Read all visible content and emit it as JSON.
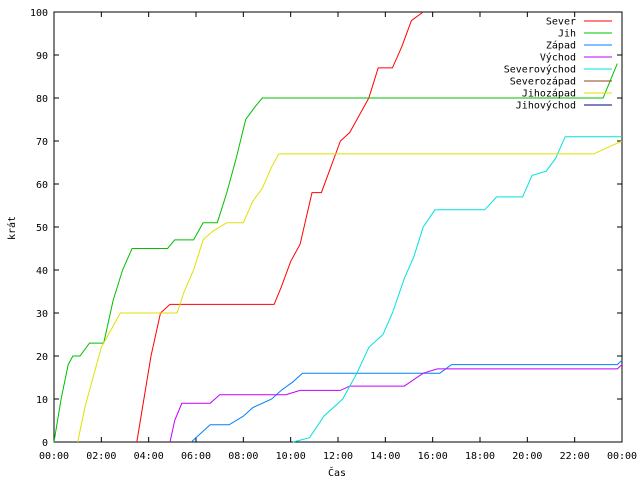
{
  "chart_data": {
    "type": "line",
    "xlabel": "Čas",
    "ylabel": "krát",
    "x_range_hours": [
      0,
      24
    ],
    "ylim": [
      0,
      100
    ],
    "grid": false,
    "legend_position": "top-right",
    "x_ticks": [
      "00:00",
      "02:00",
      "04:00",
      "06:00",
      "08:00",
      "10:00",
      "12:00",
      "14:00",
      "16:00",
      "18:00",
      "20:00",
      "22:00",
      "00:00"
    ],
    "y_ticks": [
      0,
      10,
      20,
      30,
      40,
      50,
      60,
      70,
      80,
      90,
      100
    ],
    "series": [
      {
        "name": "Sever",
        "color": "#ff0000",
        "points": [
          [
            3.5,
            0
          ],
          [
            3.8,
            10
          ],
          [
            4.1,
            20
          ],
          [
            4.5,
            30
          ],
          [
            4.9,
            32
          ],
          [
            9.3,
            32
          ],
          [
            9.6,
            36
          ],
          [
            10.0,
            42
          ],
          [
            10.4,
            46
          ],
          [
            10.9,
            58
          ],
          [
            11.3,
            58
          ],
          [
            11.7,
            64
          ],
          [
            12.1,
            70
          ],
          [
            12.5,
            72
          ],
          [
            12.9,
            76
          ],
          [
            13.3,
            80
          ],
          [
            13.7,
            87
          ],
          [
            14.3,
            87
          ],
          [
            14.7,
            92
          ],
          [
            15.1,
            98
          ],
          [
            15.6,
            100
          ]
        ]
      },
      {
        "name": "Jih",
        "color": "#00c000",
        "points": [
          [
            0,
            0
          ],
          [
            0.3,
            10
          ],
          [
            0.6,
            18
          ],
          [
            0.8,
            20
          ],
          [
            1.1,
            20
          ],
          [
            1.5,
            23
          ],
          [
            2.1,
            23
          ],
          [
            2.5,
            33
          ],
          [
            2.9,
            40
          ],
          [
            3.3,
            45
          ],
          [
            4.8,
            45
          ],
          [
            5.1,
            47
          ],
          [
            5.9,
            47
          ],
          [
            6.3,
            51
          ],
          [
            6.9,
            51
          ],
          [
            7.3,
            58
          ],
          [
            7.7,
            66
          ],
          [
            8.1,
            75
          ],
          [
            8.5,
            78
          ],
          [
            8.8,
            80
          ],
          [
            23.2,
            80
          ],
          [
            23.5,
            84
          ],
          [
            23.8,
            88
          ]
        ]
      },
      {
        "name": "Západ",
        "color": "#0080ff",
        "points": [
          [
            5.8,
            0
          ],
          [
            6.2,
            2
          ],
          [
            6.6,
            4
          ],
          [
            7.4,
            4
          ],
          [
            8.0,
            6
          ],
          [
            8.4,
            8
          ],
          [
            9.2,
            10
          ],
          [
            9.6,
            12
          ],
          [
            10.1,
            14
          ],
          [
            10.5,
            16
          ],
          [
            16.3,
            16
          ],
          [
            16.8,
            18
          ],
          [
            23.8,
            18
          ],
          [
            24,
            19
          ]
        ]
      },
      {
        "name": "Východ",
        "color": "#c000ff",
        "points": [
          [
            4.9,
            0
          ],
          [
            5.1,
            5
          ],
          [
            5.4,
            9
          ],
          [
            6.6,
            9
          ],
          [
            7.0,
            11
          ],
          [
            9.8,
            11
          ],
          [
            10.4,
            12
          ],
          [
            12.1,
            12
          ],
          [
            12.5,
            13
          ],
          [
            14.8,
            13
          ],
          [
            15.6,
            16
          ],
          [
            16.2,
            17
          ],
          [
            23.8,
            17
          ],
          [
            24,
            18
          ]
        ]
      },
      {
        "name": "Severovýchod",
        "color": "#00e0e0",
        "points": [
          [
            10.1,
            0
          ],
          [
            10.8,
            1
          ],
          [
            11.4,
            6
          ],
          [
            12.2,
            10
          ],
          [
            12.8,
            16
          ],
          [
            13.3,
            22
          ],
          [
            13.9,
            25
          ],
          [
            14.3,
            30
          ],
          [
            14.8,
            38
          ],
          [
            15.2,
            43
          ],
          [
            15.6,
            50
          ],
          [
            16.1,
            54
          ],
          [
            18.2,
            54
          ],
          [
            18.7,
            57
          ],
          [
            19.8,
            57
          ],
          [
            20.2,
            62
          ],
          [
            20.8,
            63
          ],
          [
            21.2,
            66
          ],
          [
            21.6,
            71
          ],
          [
            24,
            71
          ]
        ]
      },
      {
        "name": "Severozápad",
        "color": "#8b4513",
        "points": []
      },
      {
        "name": "Jihozápad",
        "color": "#e0e000",
        "points": [
          [
            1.0,
            0
          ],
          [
            1.3,
            8
          ],
          [
            1.7,
            16
          ],
          [
            2.0,
            22
          ],
          [
            2.4,
            26
          ],
          [
            2.8,
            30
          ],
          [
            5.2,
            30
          ],
          [
            5.5,
            35
          ],
          [
            5.9,
            40
          ],
          [
            6.3,
            47
          ],
          [
            6.7,
            49
          ],
          [
            7.3,
            51
          ],
          [
            8.0,
            51
          ],
          [
            8.4,
            56
          ],
          [
            8.8,
            59
          ],
          [
            9.2,
            64
          ],
          [
            9.5,
            67
          ],
          [
            22.8,
            67
          ],
          [
            23.2,
            68
          ],
          [
            23.6,
            69
          ],
          [
            24,
            70
          ]
        ]
      },
      {
        "name": "Jihovýchod",
        "color": "#000080",
        "points": []
      }
    ]
  }
}
